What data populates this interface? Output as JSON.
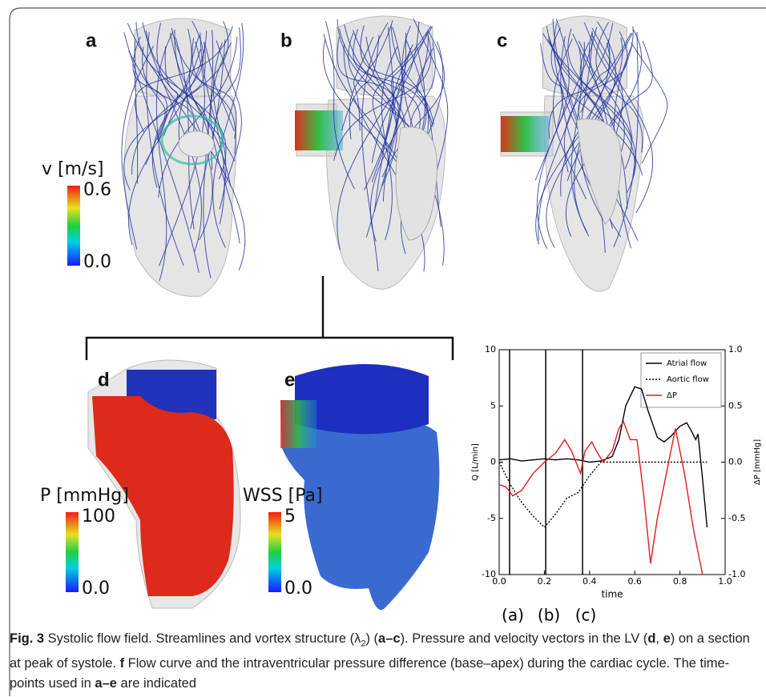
{
  "panels": [
    {
      "label": "a",
      "colorbar": {
        "title": "v [m/s]",
        "max": "0.6",
        "min": "0.0"
      }
    },
    {
      "label": "b"
    },
    {
      "label": "c"
    },
    {
      "label": "d",
      "colorbar": {
        "title": "P [mmHg]",
        "max": "100",
        "min": "0.0"
      }
    },
    {
      "label": "e",
      "colorbar": {
        "title": "WSS [Pa]",
        "max": "5",
        "min": "0.0"
      }
    }
  ],
  "chart_data": {
    "type": "line",
    "xlabel": "time",
    "ylabel": "Q [L/min]",
    "y2label": "ΔP [mmHg]",
    "xlim": [
      0,
      1
    ],
    "xticks": [
      {
        "value": 0,
        "label": "0.0"
      },
      0.2,
      0.4,
      0.6,
      0.8,
      {
        "value": 1,
        "label": "1.0"
      }
    ],
    "ylim": [
      -10,
      10
    ],
    "yticks": [
      -10,
      -5,
      0,
      5,
      10
    ],
    "y2lim": [
      -1,
      1
    ],
    "y2ticks": [
      {
        "value": -1,
        "label": "-1.0"
      },
      -0.5,
      {
        "value": 0,
        "label": "0.0"
      },
      0.5,
      {
        "value": 1,
        "label": "1.0"
      }
    ],
    "legend": "upper right",
    "markers": [
      {
        "x": 0.046,
        "label": "(a)"
      },
      {
        "x": 0.206,
        "label": "(b)"
      },
      {
        "x": 0.369,
        "label": "(c)"
      }
    ],
    "series": [
      {
        "name": "Atrial flow",
        "color": "#000000",
        "dash": "solid",
        "x": [
          0,
          0.05,
          0.1,
          0.15,
          0.2,
          0.25,
          0.3,
          0.35,
          0.4,
          0.45,
          0.5,
          0.53,
          0.56,
          0.6,
          0.63,
          0.66,
          0.7,
          0.73,
          0.76,
          0.8,
          0.83,
          0.85,
          0.87,
          0.88,
          0.9,
          0.92
        ],
        "values": [
          0.2,
          0.3,
          0.1,
          0.2,
          0.3,
          0.2,
          0.3,
          0.2,
          0,
          0.1,
          0.5,
          2,
          5,
          6.7,
          6.5,
          4.5,
          2.2,
          1.8,
          2.3,
          3.2,
          3.5,
          2.8,
          2,
          2.5,
          -1.5,
          -5.8
        ]
      },
      {
        "name": "Aortic flow",
        "color": "#000000",
        "dash": "dotted",
        "x": [
          0,
          0.05,
          0.1,
          0.15,
          0.2,
          0.25,
          0.3,
          0.35,
          0.4,
          0.45,
          0.5,
          0.92
        ],
        "values": [
          0,
          -2,
          -3.6,
          -4.8,
          -5.8,
          -4.6,
          -3.2,
          -2.7,
          -1.2,
          0,
          0,
          0
        ]
      },
      {
        "name": "ΔP",
        "color": "#e41a1c",
        "dash": "solid",
        "axis": "y2",
        "x": [
          0,
          0.03,
          0.06,
          0.1,
          0.15,
          0.2,
          0.25,
          0.29,
          0.32,
          0.36,
          0.38,
          0.41,
          0.43,
          0.46,
          0.5,
          0.53,
          0.55,
          0.58,
          0.61,
          0.64,
          0.67,
          0.7,
          0.74,
          0.78,
          0.82,
          0.86,
          0.9
        ],
        "values": [
          -0.2,
          -0.22,
          -0.3,
          -0.25,
          -0.1,
          0,
          0.08,
          0.2,
          0.1,
          -0.1,
          0.1,
          0.18,
          0.1,
          0,
          0.1,
          0.3,
          0.36,
          0.2,
          0.2,
          -0.3,
          -0.9,
          -0.5,
          -0.1,
          0.3,
          -0.1,
          -0.6,
          -1.0
        ]
      }
    ]
  },
  "caption": [
    {
      "text": "Fig. 3",
      "bold": true
    },
    {
      "text": "  Systolic flow field. Streamlines and vortex structure (λ"
    },
    {
      "text": "2",
      "sub": true
    },
    {
      "text": ") ("
    },
    {
      "text": "a–c",
      "bold": true
    },
    {
      "text": "). Pressure and velocity vectors in the LV ("
    },
    {
      "text": "d",
      "bold": true
    },
    {
      "text": ", "
    },
    {
      "text": "e",
      "bold": true
    },
    {
      "text": ") on a section at peak of systole. "
    },
    {
      "text": "f",
      "bold": true
    },
    {
      "text": " Flow curve and the intraventricular pressure difference (base–apex) during the cardiac cycle. The time-points used in "
    },
    {
      "text": "a–e",
      "bold": true
    },
    {
      "text": " are indicated"
    }
  ]
}
